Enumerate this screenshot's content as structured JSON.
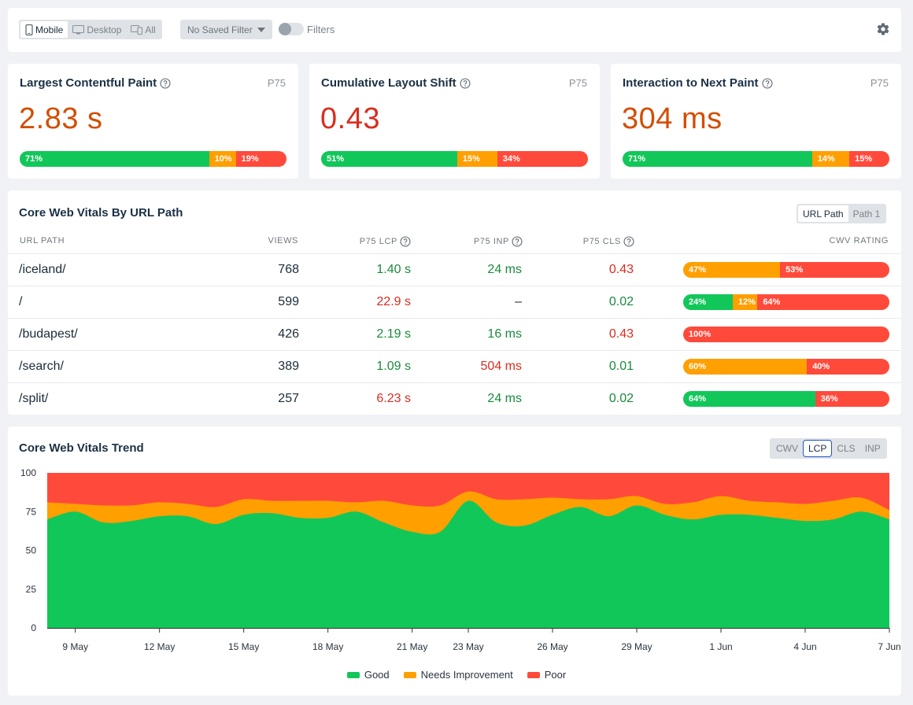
{
  "toolbar": {
    "devices": [
      {
        "label": "Mobile",
        "icon": "mobile-icon",
        "active": true
      },
      {
        "label": "Desktop",
        "icon": "desktop-icon",
        "active": false
      },
      {
        "label": "All",
        "icon": "devices-icon",
        "active": false
      }
    ],
    "saved_filter": "No Saved Filter",
    "filters_label": "Filters"
  },
  "metrics": [
    {
      "title": "Largest Contentful Paint",
      "percentile": "P75",
      "value": "2.83 s",
      "dist": [
        {
          "pct": 71,
          "label": "71%"
        },
        {
          "pct": 10,
          "label": "10%"
        },
        {
          "pct": 19,
          "label": "19%"
        }
      ]
    },
    {
      "title": "Cumulative Layout Shift",
      "percentile": "P75",
      "value": "0.43",
      "dist": [
        {
          "pct": 51,
          "label": "51%"
        },
        {
          "pct": 15,
          "label": "15%"
        },
        {
          "pct": 34,
          "label": "34%"
        }
      ]
    },
    {
      "title": "Interaction to Next Paint",
      "percentile": "P75",
      "value": "304 ms",
      "dist": [
        {
          "pct": 71,
          "label": "71%"
        },
        {
          "pct": 14,
          "label": "14%"
        },
        {
          "pct": 15,
          "label": "15%"
        }
      ]
    }
  ],
  "table": {
    "title": "Core Web Vitals By URL Path",
    "tabs": [
      {
        "label": "URL Path",
        "active": true
      },
      {
        "label": "Path 1",
        "active": false
      }
    ],
    "headers": {
      "url": "URL PATH",
      "views": "VIEWS",
      "lcp": "P75 LCP",
      "inp": "P75 INP",
      "cls": "P75 CLS",
      "rating": "CWV RATING"
    },
    "rows": [
      {
        "url": "/iceland/",
        "views": "768",
        "lcp": "1.40 s",
        "lcp_status": "good",
        "inp": "24 ms",
        "inp_status": "good",
        "cls": "0.43",
        "cls_status": "bad",
        "rating": [
          {
            "type": "o",
            "pct": 47,
            "label": "47%"
          },
          {
            "type": "r",
            "pct": 53,
            "label": "53%"
          }
        ]
      },
      {
        "url": "/",
        "views": "599",
        "lcp": "22.9 s",
        "lcp_status": "bad",
        "inp": "–",
        "inp_status": "neutral",
        "cls": "0.02",
        "cls_status": "good",
        "rating": [
          {
            "type": "g",
            "pct": 24,
            "label": "24%"
          },
          {
            "type": "o",
            "pct": 12,
            "label": "12%"
          },
          {
            "type": "r",
            "pct": 64,
            "label": "64%"
          }
        ]
      },
      {
        "url": "/budapest/",
        "views": "426",
        "lcp": "2.19 s",
        "lcp_status": "good",
        "inp": "16 ms",
        "inp_status": "good",
        "cls": "0.43",
        "cls_status": "bad",
        "rating": [
          {
            "type": "r",
            "pct": 100,
            "label": "100%"
          }
        ]
      },
      {
        "url": "/search/",
        "views": "389",
        "lcp": "1.09 s",
        "lcp_status": "good",
        "inp": "504 ms",
        "inp_status": "bad",
        "cls": "0.01",
        "cls_status": "good",
        "rating": [
          {
            "type": "o",
            "pct": 60,
            "label": "60%"
          },
          {
            "type": "r",
            "pct": 40,
            "label": "40%"
          }
        ]
      },
      {
        "url": "/split/",
        "views": "257",
        "lcp": "6.23 s",
        "lcp_status": "bad",
        "inp": "24 ms",
        "inp_status": "good",
        "cls": "0.02",
        "cls_status": "good",
        "rating": [
          {
            "type": "g",
            "pct": 64,
            "label": "64%"
          },
          {
            "type": "r",
            "pct": 36,
            "label": "36%"
          }
        ]
      }
    ]
  },
  "trend": {
    "title": "Core Web Vitals Trend",
    "tabs": [
      {
        "label": "CWV",
        "active": false
      },
      {
        "label": "LCP",
        "active": true
      },
      {
        "label": "CLS",
        "active": false
      },
      {
        "label": "INP",
        "active": false
      }
    ]
  },
  "colors": {
    "good": "#12c75a",
    "needs_improvement": "#ff9f00",
    "poor": "#ff4a3b"
  },
  "chart_data": {
    "type": "area",
    "stacked": true,
    "title": "",
    "ylim": [
      0,
      100
    ],
    "yticks": [
      0,
      25,
      50,
      75,
      100
    ],
    "x_tick_labels": [
      "9 May",
      "12 May",
      "15 May",
      "18 May",
      "21 May",
      "23 May",
      "26 May",
      "29 May",
      "1 Jun",
      "4 Jun",
      "7 Jun"
    ],
    "x_tick_index": [
      1,
      4,
      7,
      10,
      13,
      15,
      18,
      21,
      24,
      27,
      30
    ],
    "series": [
      {
        "name": "Good",
        "values": [
          70,
          75,
          68,
          69,
          72,
          72,
          67,
          73,
          74,
          71,
          71,
          75,
          68,
          62,
          62,
          82,
          68,
          66,
          73,
          78,
          72,
          79,
          73,
          70,
          73,
          73,
          71,
          69,
          70,
          75,
          70
        ]
      },
      {
        "name": "Needs Improvement",
        "values": [
          11,
          5,
          11,
          10,
          9,
          8,
          11,
          10,
          8,
          11,
          11,
          6,
          14,
          17,
          17,
          6,
          15,
          17,
          11,
          5,
          11,
          6,
          7,
          11,
          12,
          9,
          10,
          11,
          12,
          9,
          6
        ]
      },
      {
        "name": "Poor",
        "values": [
          19,
          20,
          21,
          21,
          19,
          20,
          22,
          17,
          18,
          18,
          18,
          19,
          18,
          21,
          21,
          12,
          17,
          17,
          16,
          17,
          17,
          15,
          20,
          19,
          15,
          18,
          19,
          20,
          18,
          16,
          24
        ]
      }
    ]
  }
}
